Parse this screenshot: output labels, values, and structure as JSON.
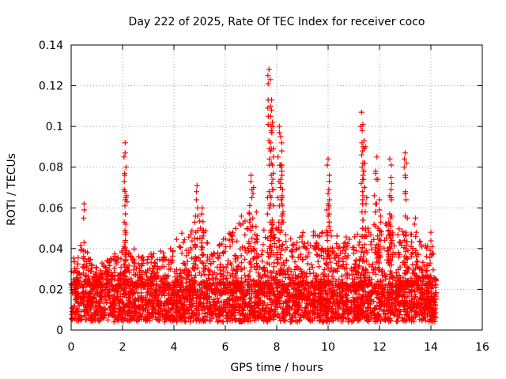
{
  "chart_data": {
    "type": "scatter",
    "title": "Day 222 of 2025, Rate Of TEC Index for receiver coco",
    "xlabel": "GPS time / hours",
    "ylabel": "ROTI / TECUs",
    "xlim": [
      0,
      16
    ],
    "ylim": [
      0,
      0.14
    ],
    "xticks": [
      "0",
      "2",
      "4",
      "6",
      "8",
      "10",
      "12",
      "14",
      "16"
    ],
    "yticks": [
      "0",
      "0.02",
      "0.04",
      "0.06",
      "0.08",
      "0.1",
      "0.12",
      "0.14"
    ],
    "grid": true,
    "marker": "+",
    "color": "#ff0000",
    "data_extent_hours": [
      0,
      14.2
    ],
    "series": [
      {
        "name": "ROTI",
        "peaks": [
          {
            "x": 0.5,
            "y": 0.062
          },
          {
            "x": 2.1,
            "y": 0.092
          },
          {
            "x": 2.1,
            "y": 0.087
          },
          {
            "x": 2.15,
            "y": 0.066
          },
          {
            "x": 4.9,
            "y": 0.071
          },
          {
            "x": 5.1,
            "y": 0.06
          },
          {
            "x": 7.0,
            "y": 0.076
          },
          {
            "x": 7.1,
            "y": 0.07
          },
          {
            "x": 7.7,
            "y": 0.128
          },
          {
            "x": 7.75,
            "y": 0.123
          },
          {
            "x": 7.8,
            "y": 0.113
          },
          {
            "x": 7.8,
            "y": 0.108
          },
          {
            "x": 7.85,
            "y": 0.1
          },
          {
            "x": 8.1,
            "y": 0.1
          },
          {
            "x": 8.15,
            "y": 0.095
          },
          {
            "x": 8.2,
            "y": 0.088
          },
          {
            "x": 8.2,
            "y": 0.081
          },
          {
            "x": 10.0,
            "y": 0.084
          },
          {
            "x": 10.05,
            "y": 0.076
          },
          {
            "x": 10.0,
            "y": 0.067
          },
          {
            "x": 10.0,
            "y": 0.062
          },
          {
            "x": 11.3,
            "y": 0.107
          },
          {
            "x": 11.35,
            "y": 0.101
          },
          {
            "x": 11.4,
            "y": 0.093
          },
          {
            "x": 11.4,
            "y": 0.089
          },
          {
            "x": 11.5,
            "y": 0.065
          },
          {
            "x": 11.9,
            "y": 0.085
          },
          {
            "x": 11.85,
            "y": 0.077
          },
          {
            "x": 12.0,
            "y": 0.064
          },
          {
            "x": 12.0,
            "y": 0.059
          },
          {
            "x": 12.4,
            "y": 0.084
          },
          {
            "x": 12.45,
            "y": 0.075
          },
          {
            "x": 12.4,
            "y": 0.066
          },
          {
            "x": 13.0,
            "y": 0.087
          },
          {
            "x": 13.05,
            "y": 0.082
          },
          {
            "x": 13.0,
            "y": 0.067
          },
          {
            "x": 13.4,
            "y": 0.055
          },
          {
            "x": 14.0,
            "y": 0.048
          }
        ],
        "envelope": [
          {
            "x": 0.0,
            "y": 0.035
          },
          {
            "x": 0.3,
            "y": 0.045
          },
          {
            "x": 0.6,
            "y": 0.042
          },
          {
            "x": 1.0,
            "y": 0.032
          },
          {
            "x": 1.5,
            "y": 0.035
          },
          {
            "x": 1.8,
            "y": 0.04
          },
          {
            "x": 2.3,
            "y": 0.042
          },
          {
            "x": 2.8,
            "y": 0.036
          },
          {
            "x": 3.2,
            "y": 0.038
          },
          {
            "x": 3.6,
            "y": 0.04
          },
          {
            "x": 4.0,
            "y": 0.045
          },
          {
            "x": 4.5,
            "y": 0.05
          },
          {
            "x": 5.0,
            "y": 0.058
          },
          {
            "x": 5.5,
            "y": 0.045
          },
          {
            "x": 6.0,
            "y": 0.045
          },
          {
            "x": 6.5,
            "y": 0.055
          },
          {
            "x": 7.0,
            "y": 0.065
          },
          {
            "x": 7.5,
            "y": 0.05
          },
          {
            "x": 8.0,
            "y": 0.055
          },
          {
            "x": 8.5,
            "y": 0.045
          },
          {
            "x": 9.0,
            "y": 0.048
          },
          {
            "x": 9.5,
            "y": 0.05
          },
          {
            "x": 10.0,
            "y": 0.05
          },
          {
            "x": 10.5,
            "y": 0.045
          },
          {
            "x": 11.0,
            "y": 0.048
          },
          {
            "x": 11.5,
            "y": 0.05
          },
          {
            "x": 12.0,
            "y": 0.055
          },
          {
            "x": 12.5,
            "y": 0.05
          },
          {
            "x": 13.0,
            "y": 0.05
          },
          {
            "x": 13.5,
            "y": 0.045
          },
          {
            "x": 14.0,
            "y": 0.045
          },
          {
            "x": 14.2,
            "y": 0.04
          }
        ],
        "baseline_range": [
          0.004,
          0.022
        ]
      }
    ]
  }
}
